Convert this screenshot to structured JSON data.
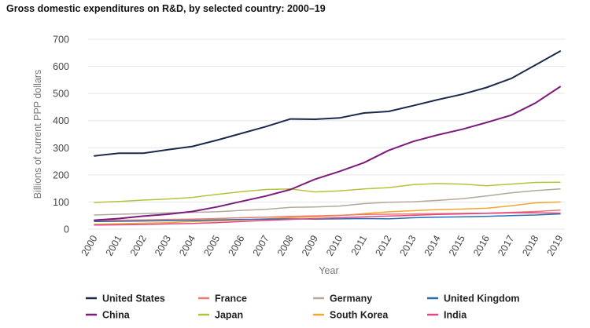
{
  "chart_data": {
    "type": "line",
    "title": "Gross domestic expenditures on R&D, by selected country: 2000–19",
    "xlabel": "Year",
    "ylabel": "Billions of current PPP dollars",
    "ylim": [
      0,
      700
    ],
    "yticks": [
      "0",
      "100",
      "200",
      "300",
      "400",
      "500",
      "600",
      "700"
    ],
    "categories": [
      "2000",
      "2001",
      "2002",
      "2003",
      "2004",
      "2005",
      "2006",
      "2007",
      "2008",
      "2009",
      "2010",
      "2011",
      "2012",
      "2013",
      "2014",
      "2015",
      "2016",
      "2017",
      "2018",
      "2019"
    ],
    "grid": true,
    "legend_position": "bottom",
    "series": [
      {
        "name": "United States",
        "color": "#1b2a4a",
        "values": [
          270,
          280,
          280,
          293,
          305,
          328,
          353,
          378,
          406,
          405,
          410,
          428,
          434,
          455,
          477,
          497,
          522,
          555,
          605,
          656
        ]
      },
      {
        "name": "France",
        "color": "#ee7b6f",
        "values": [
          32,
          33,
          34,
          36,
          37,
          39,
          42,
          44,
          47,
          49,
          51,
          54,
          55,
          56,
          57,
          58,
          59,
          62,
          65,
          70
        ]
      },
      {
        "name": "Germany",
        "color": "#b5a898",
        "values": [
          52,
          55,
          57,
          60,
          62,
          64,
          69,
          73,
          80,
          82,
          85,
          94,
          99,
          101,
          106,
          112,
          122,
          134,
          142,
          148
        ]
      },
      {
        "name": "United Kingdom",
        "color": "#2a6db0",
        "values": [
          28,
          29,
          30,
          31,
          32,
          34,
          36,
          37,
          38,
          37,
          38,
          39,
          38,
          42,
          44,
          45,
          47,
          50,
          52,
          56
        ]
      },
      {
        "name": "China",
        "color": "#7d1a7d",
        "values": [
          33,
          39,
          48,
          55,
          65,
          82,
          102,
          122,
          146,
          184,
          213,
          245,
          290,
          323,
          347,
          368,
          393,
          420,
          465,
          525
        ]
      },
      {
        "name": "Japan",
        "color": "#b6c23a",
        "values": [
          98,
          102,
          107,
          111,
          117,
          128,
          138,
          146,
          148,
          137,
          141,
          148,
          153,
          164,
          168,
          166,
          160,
          166,
          172,
          173
        ]
      },
      {
        "name": "South Korea",
        "color": "#f0a830",
        "values": [
          18,
          20,
          22,
          24,
          28,
          30,
          34,
          38,
          43,
          45,
          50,
          57,
          64,
          68,
          72,
          74,
          77,
          86,
          97,
          100
        ]
      },
      {
        "name": "India",
        "color": "#e0468a",
        "values": [
          15,
          16,
          17,
          19,
          21,
          24,
          28,
          32,
          36,
          39,
          42,
          45,
          48,
          51,
          54,
          56,
          58,
          60,
          60,
          59
        ]
      }
    ]
  }
}
